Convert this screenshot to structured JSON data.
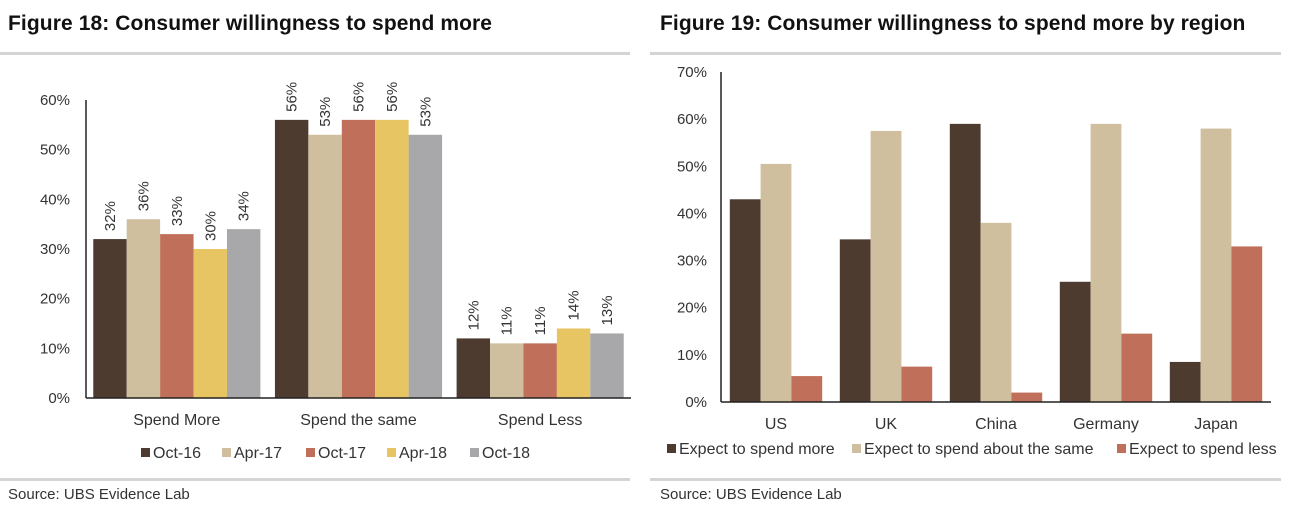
{
  "figures": [
    {
      "title": "Figure 18: Consumer willingness to spend more",
      "source": "Source:  UBS Evidence Lab",
      "chart_data": {
        "type": "bar",
        "categories": [
          "Spend More",
          "Spend the same",
          "Spend Less"
        ],
        "series": [
          {
            "name": "Oct-16",
            "color": "#4e3b30",
            "values": [
              32,
              56,
              12
            ]
          },
          {
            "name": "Apr-17",
            "color": "#cfbf9f",
            "values": [
              36,
              53,
              11
            ]
          },
          {
            "name": "Oct-17",
            "color": "#c0705a",
            "values": [
              33,
              56,
              11
            ]
          },
          {
            "name": "Apr-18",
            "color": "#e8c563",
            "values": [
              30,
              56,
              14
            ]
          },
          {
            "name": "Oct-18",
            "color": "#a8a8aa",
            "values": [
              34,
              53,
              13
            ]
          }
        ],
        "y_ticks": [
          "0%",
          "10%",
          "20%",
          "30%",
          "40%",
          "50%",
          "60%"
        ],
        "ylim": [
          0,
          60
        ],
        "data_labels": true,
        "data_label_rotation": "vertical",
        "legend": "bottom",
        "grid": false
      }
    },
    {
      "title": "Figure 19: Consumer willingness to spend more by region",
      "source": "Source:  UBS Evidence Lab",
      "chart_data": {
        "type": "bar",
        "categories": [
          "US",
          "UK",
          "China",
          "Germany",
          "Japan"
        ],
        "series": [
          {
            "name": "Expect to spend more",
            "color": "#4e3b30",
            "values": [
              43,
              34.5,
              59,
              25.5,
              8.5
            ]
          },
          {
            "name": "Expect to spend about the same",
            "color": "#cfbf9f",
            "values": [
              50.5,
              57.5,
              38,
              59,
              58
            ]
          },
          {
            "name": "Expect to spend less",
            "color": "#c0705a",
            "values": [
              5.5,
              7.5,
              2,
              14.5,
              33
            ]
          }
        ],
        "y_ticks": [
          "0%",
          "10%",
          "20%",
          "30%",
          "40%",
          "50%",
          "60%",
          "70%"
        ],
        "ylim": [
          0,
          70
        ],
        "data_labels": false,
        "legend": "bottom",
        "grid": false
      }
    }
  ]
}
